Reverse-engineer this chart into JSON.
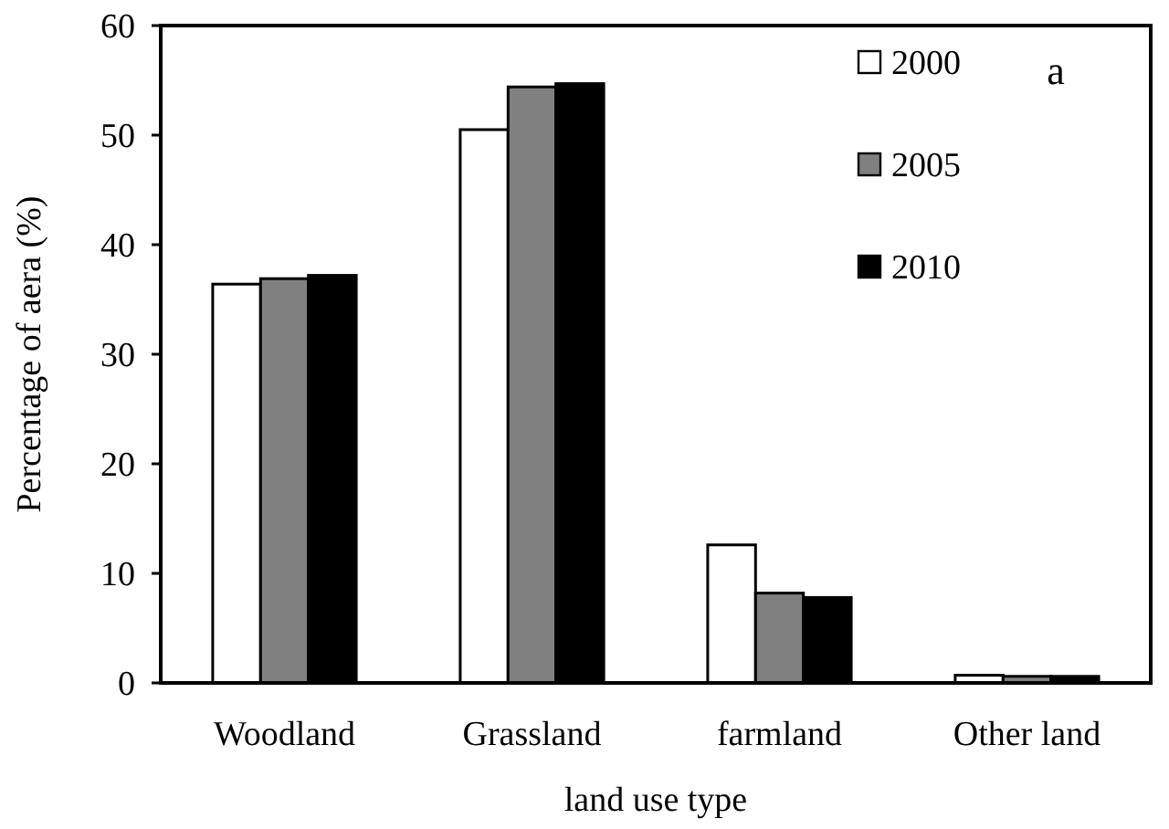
{
  "chart_data": {
    "type": "bar",
    "xlabel": "land use type",
    "ylabel": "Percentage of aera (%)",
    "annotations": [
      "a"
    ],
    "categories": [
      "Woodland",
      "Grassland",
      "farmland",
      "Other land"
    ],
    "series": [
      {
        "name": "2000",
        "color": "#ffffff",
        "values": [
          36.4,
          50.5,
          12.6,
          0.7
        ]
      },
      {
        "name": "2005",
        "color": "#808080",
        "values": [
          36.9,
          54.4,
          8.2,
          0.6
        ]
      },
      {
        "name": "2010",
        "color": "#000000",
        "values": [
          37.2,
          54.7,
          7.8,
          0.6
        ]
      }
    ],
    "ylim": [
      0,
      60
    ],
    "yticks": [
      0,
      10,
      20,
      30,
      40,
      50,
      60
    ],
    "grid": false,
    "legend": "top right"
  }
}
